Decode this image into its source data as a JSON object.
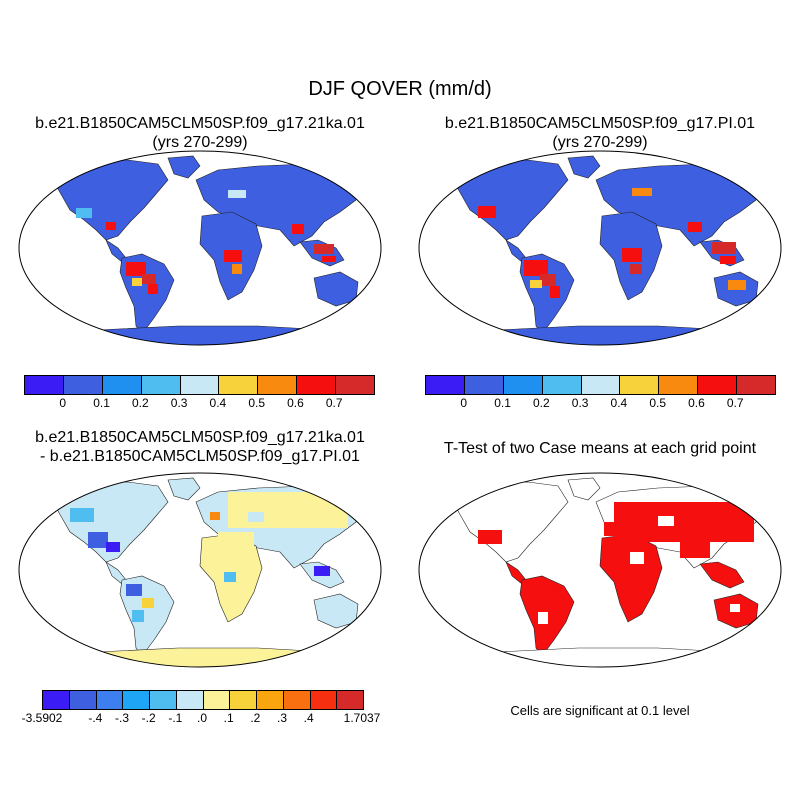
{
  "title": "DJF QOVER (mm/d)",
  "panels": {
    "case1": {
      "title_line1": "b.e21.B1850CAM5CLM50SP.f09_g17.21ka.01",
      "title_line2": "(yrs 270-299)"
    },
    "case2": {
      "title_line1": "b.e21.B1850CAM5CLM50SP.f09_g17.PI.01",
      "title_line2": "(yrs 270-299)"
    },
    "diff": {
      "title_line1": "b.e21.B1850CAM5CLM50SP.f09_g17.21ka.01",
      "title_line2": "- b.e21.B1850CAM5CLM50SP.f09_g17.PI.01"
    },
    "ttest": {
      "title_line1": "T-Test of two Case means at each grid point",
      "note": "Cells are significant at 0.1 level"
    }
  },
  "colorbars": {
    "mean": {
      "colors": [
        "#3b1cf5",
        "#3d5fe0",
        "#1f8ff0",
        "#4fbdf0",
        "#c8e8f5",
        "#f8d23a",
        "#f98a10",
        "#f50f0f",
        "#d62a2a"
      ],
      "labels": [
        "0",
        "0.1",
        "0.2",
        "0.3",
        "0.4",
        "0.5",
        "0.6",
        "0.7"
      ]
    },
    "diff": {
      "colors": [
        "#3b1cf5",
        "#3d5fe0",
        "#3d7fee",
        "#1fa5f5",
        "#4fbdf0",
        "#c8e8f5",
        "#fbf29a",
        "#f8d23a",
        "#f9a50f",
        "#f97010",
        "#f52f0f",
        "#d62a2a"
      ],
      "labels": [
        "-3.5902",
        "-.4",
        "-.3",
        "-.2",
        "-.1",
        ".0",
        ".1",
        ".2",
        ".3",
        ".4",
        "1.7037"
      ]
    }
  },
  "colors": {
    "mean_background": "#3d5fe0",
    "diff_background_positive": "#fbf29a",
    "diff_background_negative": "#c8e8f5",
    "significant": "#f50f0f",
    "ocean": "#ffffff",
    "coastline": "#000000"
  }
}
